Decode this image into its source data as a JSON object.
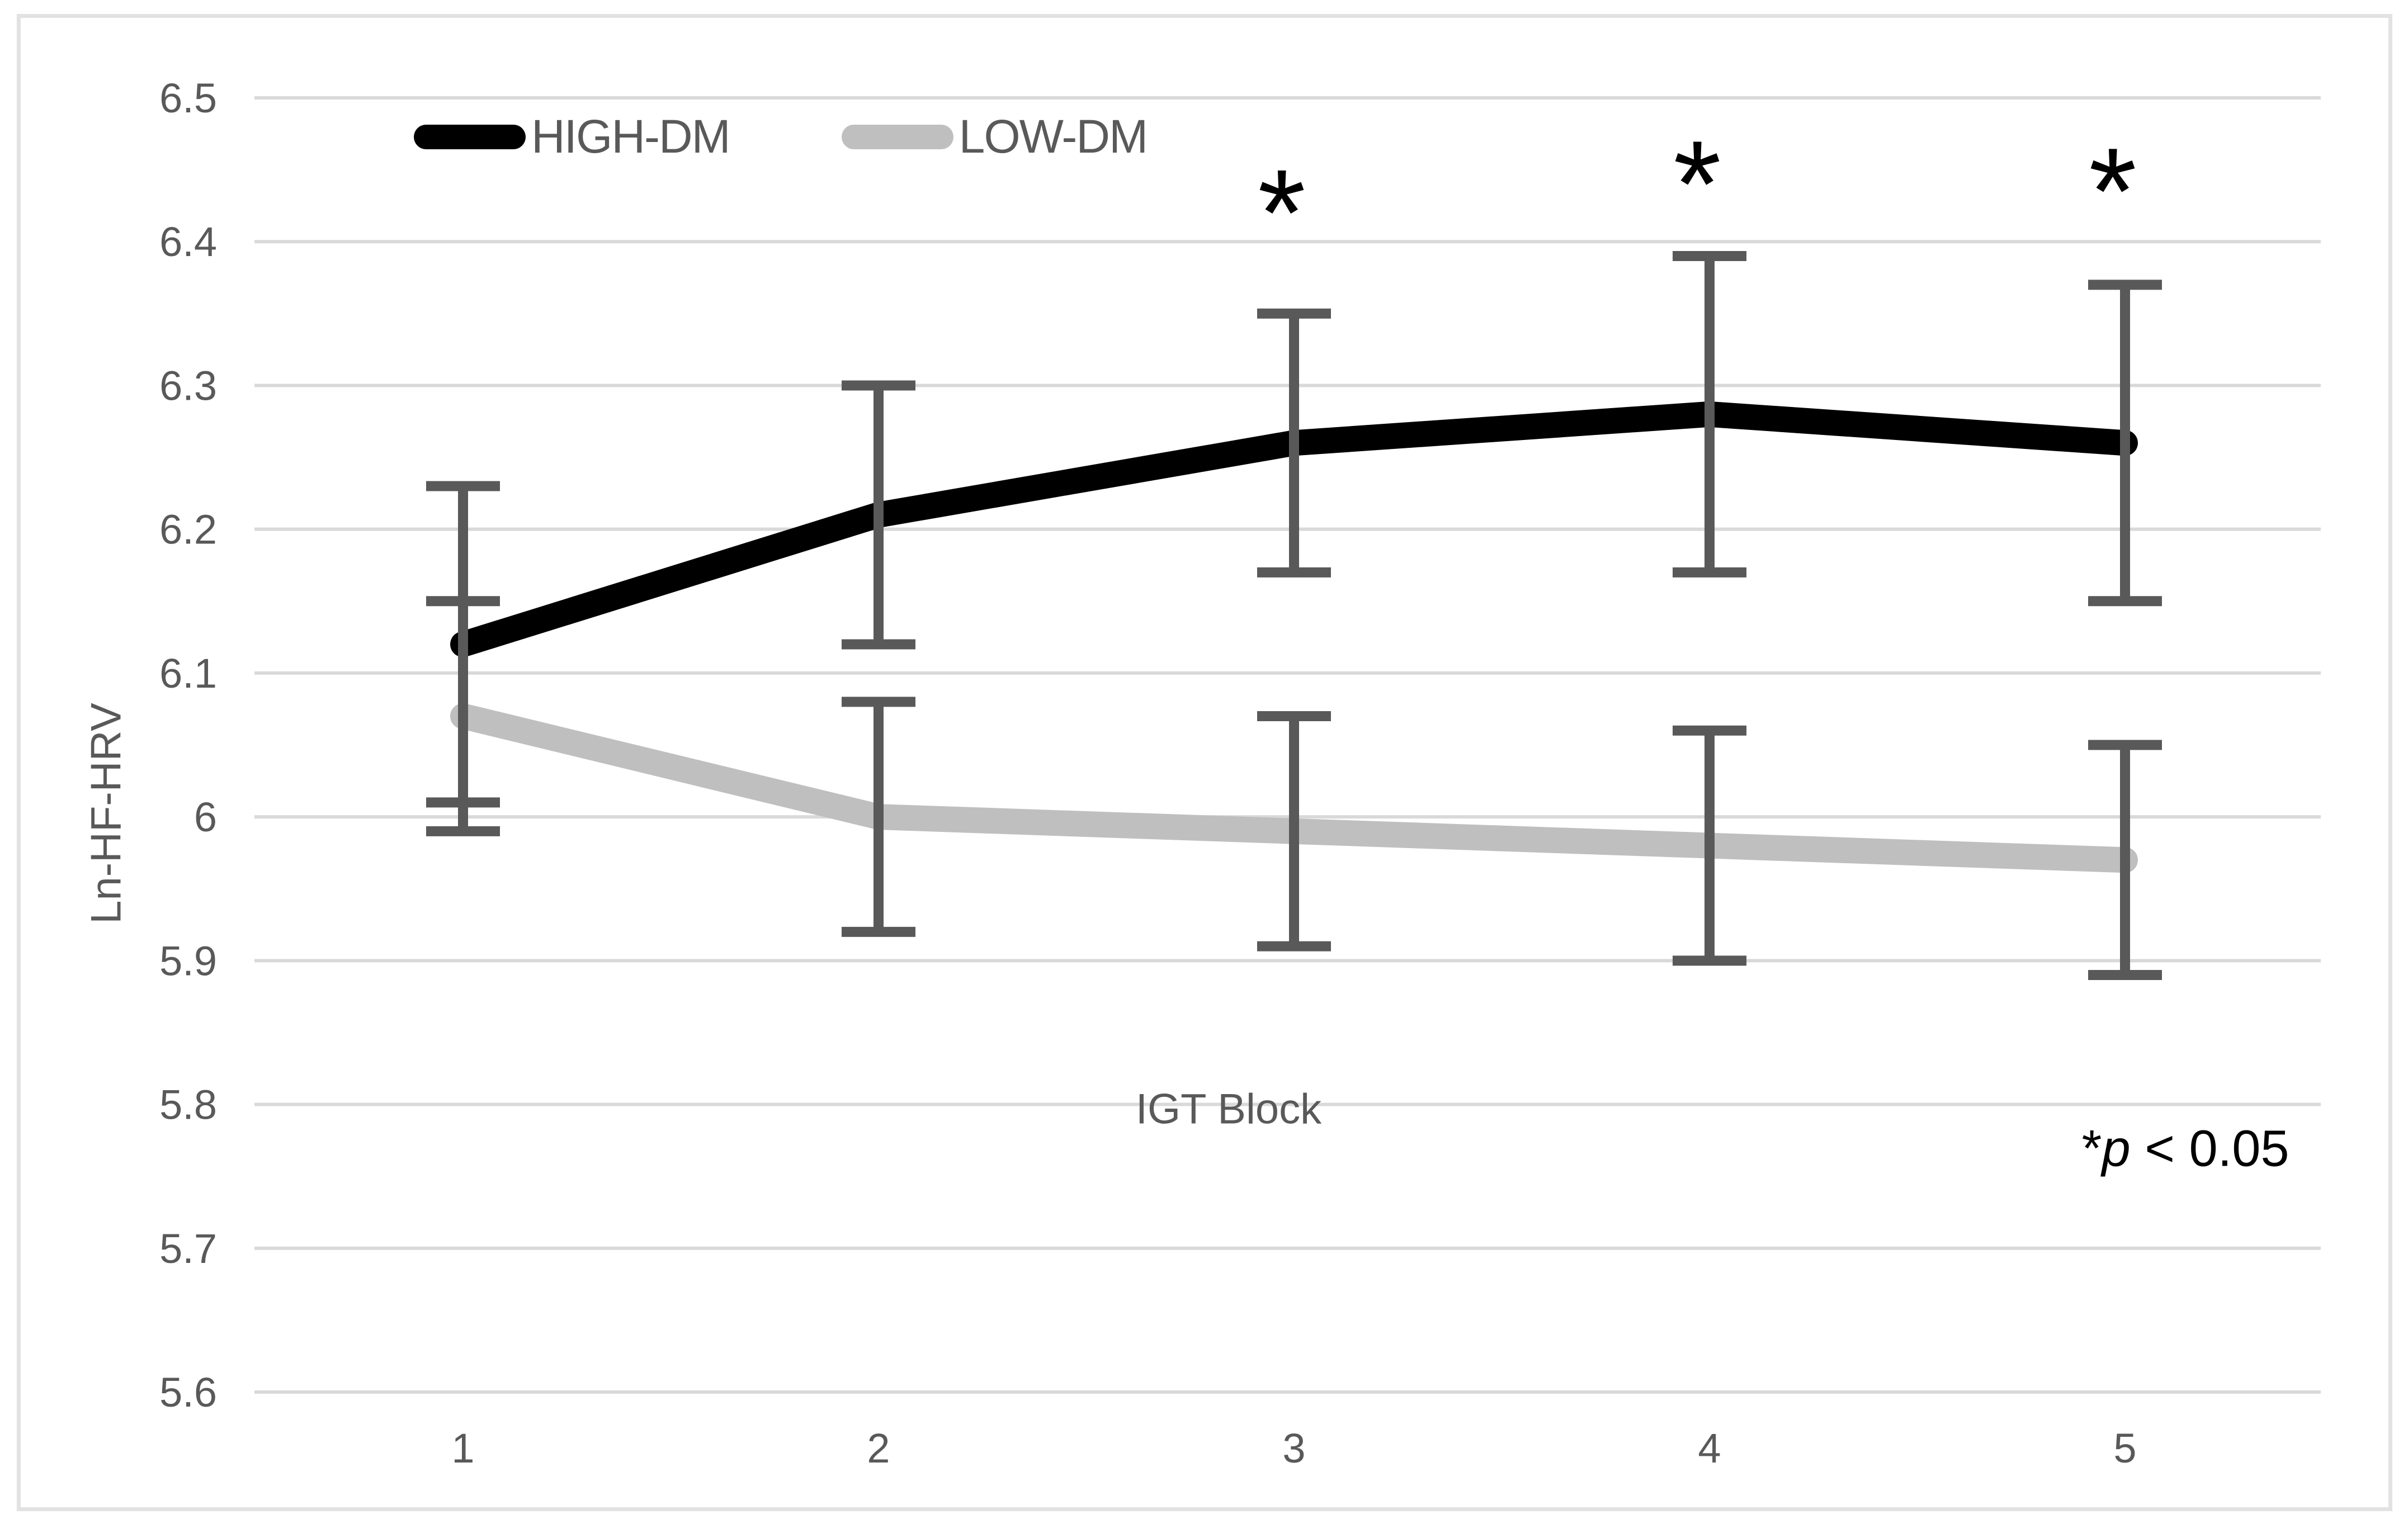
{
  "figure_name": "Ln-HF-HRV by IGT Block for HIGH-DM and LOW-DM groups",
  "annotation_parts": {
    "star": "*",
    "p": "p",
    "rest": " < 0.05"
  },
  "style": {
    "background": "#ffffff",
    "border_color": "#e2e2e2",
    "gridline_color": "#d9d9d9",
    "axis_text_color": "#595959",
    "error_bar_color": "#595959",
    "annotation_color": "#000000",
    "high_dm_color": "#000000",
    "low_dm_color": "#bfbfbf"
  },
  "chart_data": {
    "type": "line",
    "title": "",
    "xlabel": "IGT Block",
    "ylabel": "Ln-HF-HRV",
    "categories": [
      "1",
      "2",
      "3",
      "4",
      "5"
    ],
    "ylim": [
      5.6,
      6.5
    ],
    "ytick_step": 0.1,
    "ytick_labels": [
      "6.5",
      "6.4",
      "6.3",
      "6.2",
      "6.1",
      "6",
      "5.9",
      "5.8",
      "5.7",
      "5.6"
    ],
    "grid": true,
    "legend_position": "inside-top-left",
    "legend": [
      "HIGH-DM",
      "LOW-DM"
    ],
    "series": [
      {
        "name": "HIGH-DM",
        "color": "#000000",
        "values": [
          6.12,
          6.21,
          6.26,
          6.28,
          6.26
        ],
        "error_low": [
          6.01,
          6.12,
          6.17,
          6.17,
          6.15
        ],
        "error_high": [
          6.23,
          6.3,
          6.35,
          6.39,
          6.37
        ]
      },
      {
        "name": "LOW-DM",
        "color": "#bfbfbf",
        "values": [
          6.07,
          6.0,
          5.99,
          5.98,
          5.97
        ],
        "error_low": [
          5.99,
          5.92,
          5.91,
          5.9,
          5.89
        ],
        "error_high": [
          6.15,
          6.08,
          6.07,
          6.06,
          6.05
        ]
      }
    ],
    "significance_marks": [
      {
        "category": "3",
        "symbol": "*",
        "y": 6.44
      },
      {
        "category": "4",
        "symbol": "*",
        "y": 6.46
      },
      {
        "category": "5",
        "symbol": "*",
        "y": 6.455
      }
    ],
    "annotation": "*p < 0.05"
  }
}
